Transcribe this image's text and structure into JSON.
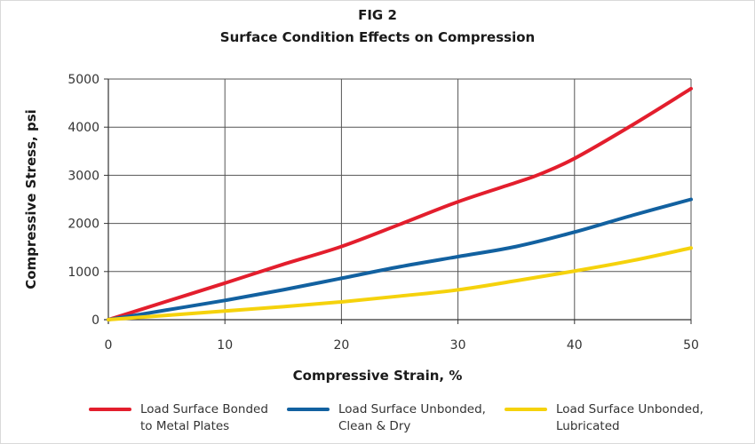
{
  "chart_data": {
    "type": "line",
    "title": "FIG 2",
    "subtitle": "Surface Condition Effects on Compression",
    "xlabel": "Compressive Strain, %",
    "ylabel": "Compressive Stress, psi",
    "xlim": [
      0,
      50
    ],
    "ylim": [
      0,
      5000
    ],
    "x_ticks": [
      0,
      10,
      20,
      30,
      40,
      50
    ],
    "y_ticks": [
      0,
      1000,
      2000,
      3000,
      4000,
      5000
    ],
    "grid": true,
    "legend_position": "bottom",
    "series": [
      {
        "name_lines": [
          "Load Surface Bonded",
          "to Metal Plates"
        ],
        "color": "#e31e2d",
        "x": [
          0,
          5,
          10,
          15,
          20,
          25,
          30,
          35,
          37,
          40,
          45,
          50
        ],
        "y": [
          0,
          380,
          760,
          1150,
          1520,
          1980,
          2450,
          2850,
          3020,
          3350,
          4050,
          4800
        ]
      },
      {
        "name_lines": [
          "Load Surface Unbonded,",
          "Clean & Dry"
        ],
        "color": "#1261a0",
        "x": [
          0,
          5,
          10,
          15,
          20,
          25,
          30,
          35,
          40,
          45,
          50
        ],
        "y": [
          0,
          200,
          400,
          620,
          860,
          1100,
          1310,
          1520,
          1820,
          2170,
          2500
        ]
      },
      {
        "name_lines": [
          "Load Surface Unbonded,",
          "Lubricated"
        ],
        "color": "#f5d20c",
        "x": [
          0,
          5,
          10,
          15,
          20,
          25,
          30,
          35,
          40,
          45,
          50
        ],
        "y": [
          0,
          90,
          180,
          270,
          370,
          490,
          620,
          810,
          1010,
          1230,
          1490
        ]
      }
    ]
  }
}
